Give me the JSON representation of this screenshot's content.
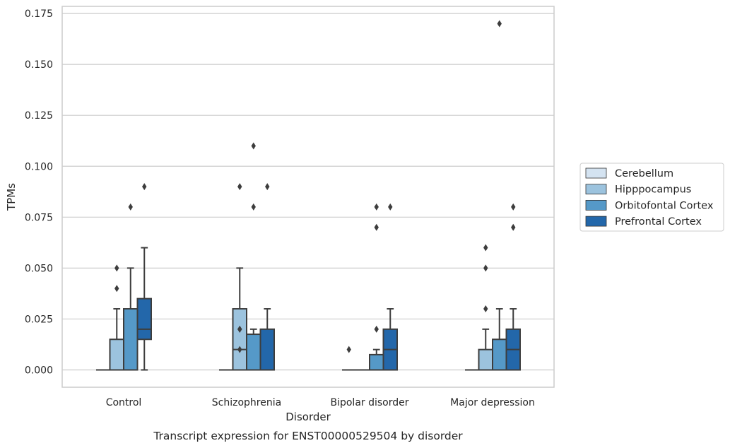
{
  "chart_data": {
    "type": "box",
    "caption": "Transcript expression for ENST00000529504 by disorder",
    "xlabel": "Disorder",
    "ylabel": "TPMs",
    "ylim": [
      -0.0085,
      0.1785
    ],
    "yticks": [
      0.0,
      0.025,
      0.05,
      0.075,
      0.1,
      0.125,
      0.15,
      0.175
    ],
    "ytick_labels": [
      "0.000",
      "0.025",
      "0.050",
      "0.075",
      "0.100",
      "0.125",
      "0.150",
      "0.175"
    ],
    "grid": true,
    "legend_position": "right",
    "categories": [
      "Control",
      "Schizophrenia",
      "Bipolar disorder",
      "Major depression"
    ],
    "series": [
      {
        "name": "Cerebellum",
        "color": "#d4e3f1",
        "boxes": [
          {
            "whislo": 0.0,
            "q1": 0.0,
            "med": 0.0,
            "q3": 0.0,
            "whishi": 0.0,
            "fliers": []
          },
          {
            "whislo": 0.0,
            "q1": 0.0,
            "med": 0.0,
            "q3": 0.0,
            "whishi": 0.0,
            "fliers": []
          },
          {
            "whislo": 0.0,
            "q1": 0.0,
            "med": 0.0,
            "q3": 0.0,
            "whishi": 0.0,
            "fliers": [
              0.01
            ]
          },
          {
            "whislo": 0.0,
            "q1": 0.0,
            "med": 0.0,
            "q3": 0.0,
            "whishi": 0.0,
            "fliers": []
          }
        ]
      },
      {
        "name": "Hipppocampus",
        "color": "#9cc3de",
        "boxes": [
          {
            "whislo": 0.0,
            "q1": 0.0,
            "med": 0.0,
            "q3": 0.015,
            "whishi": 0.03,
            "fliers": [
              0.04,
              0.05
            ]
          },
          {
            "whislo": 0.0,
            "q1": 0.0,
            "med": 0.01,
            "q3": 0.03,
            "whishi": 0.05,
            "fliers": [
              0.01,
              0.02,
              0.02,
              0.09
            ]
          },
          {
            "whislo": 0.0,
            "q1": 0.0,
            "med": 0.0,
            "q3": 0.0,
            "whishi": 0.0,
            "fliers": []
          },
          {
            "whislo": 0.0,
            "q1": 0.0,
            "med": 0.0,
            "q3": 0.01,
            "whishi": 0.02,
            "fliers": [
              0.03,
              0.05,
              0.06
            ]
          }
        ]
      },
      {
        "name": "Orbitofontal Cortex",
        "color": "#5599c8",
        "boxes": [
          {
            "whislo": 0.0,
            "q1": 0.0,
            "med": 0.0,
            "q3": 0.03,
            "whishi": 0.05,
            "fliers": [
              0.08
            ]
          },
          {
            "whislo": 0.0,
            "q1": 0.0,
            "med": 0.0,
            "q3": 0.0175,
            "whishi": 0.02,
            "fliers": [
              0.08,
              0.11
            ]
          },
          {
            "whislo": 0.0,
            "q1": 0.0,
            "med": 0.0,
            "q3": 0.0075,
            "whishi": 0.01,
            "fliers": [
              0.02,
              0.07,
              0.08
            ]
          },
          {
            "whislo": 0.0,
            "q1": 0.0,
            "med": 0.0,
            "q3": 0.015,
            "whishi": 0.03,
            "fliers": [
              0.17
            ]
          }
        ]
      },
      {
        "name": "Prefrontal Cortex",
        "color": "#2367aa",
        "boxes": [
          {
            "whislo": 0.0,
            "q1": 0.015,
            "med": 0.02,
            "q3": 0.035,
            "whishi": 0.06,
            "fliers": [
              0.09
            ]
          },
          {
            "whislo": 0.0,
            "q1": 0.0,
            "med": 0.0,
            "q3": 0.02,
            "whishi": 0.03,
            "fliers": [
              0.09
            ]
          },
          {
            "whislo": 0.0,
            "q1": 0.0,
            "med": 0.01,
            "q3": 0.02,
            "whishi": 0.03,
            "fliers": [
              0.08
            ]
          },
          {
            "whislo": 0.0,
            "q1": 0.0,
            "med": 0.01,
            "q3": 0.02,
            "whishi": 0.03,
            "fliers": [
              0.07,
              0.08
            ]
          }
        ]
      }
    ]
  }
}
